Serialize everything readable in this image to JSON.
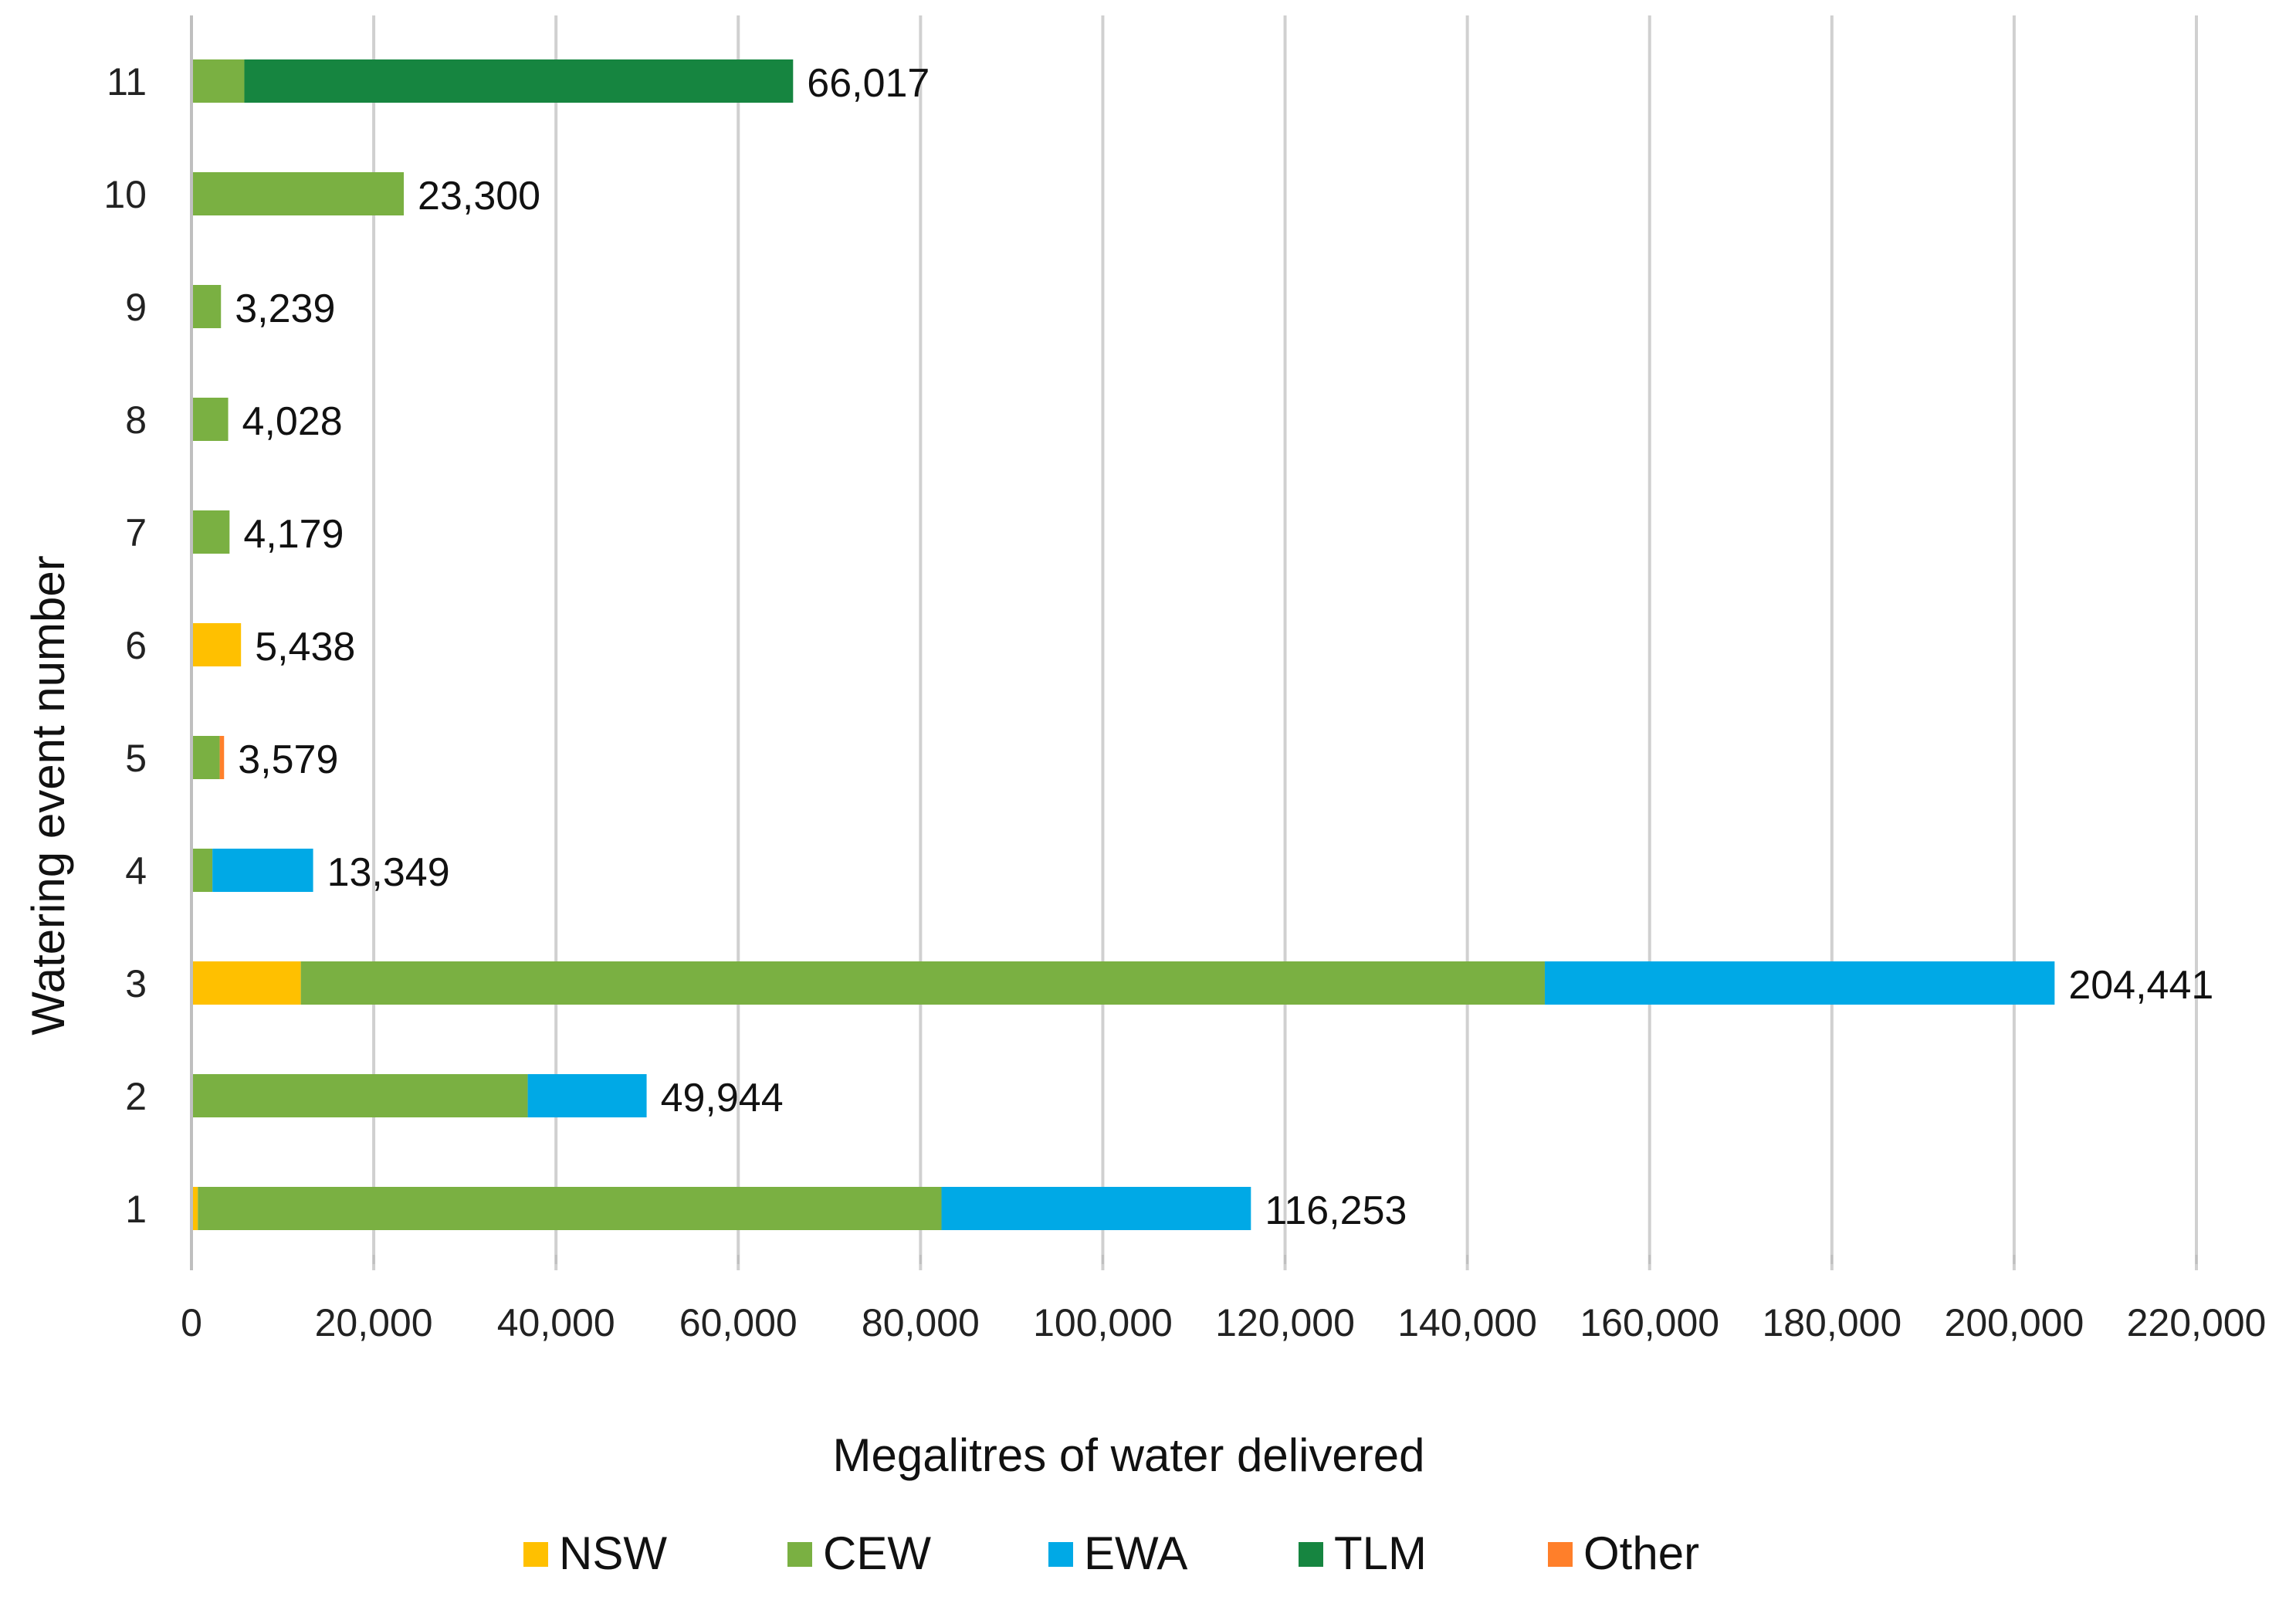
{
  "chart_data": {
    "type": "bar",
    "orientation": "horizontal",
    "stacked": true,
    "title": "",
    "xlabel": "Megalitres of water delivered",
    "ylabel": "Watering event number",
    "xlim": [
      0,
      220000
    ],
    "x_ticks": [
      0,
      20000,
      40000,
      60000,
      80000,
      100000,
      120000,
      140000,
      160000,
      180000,
      200000,
      220000
    ],
    "x_tick_labels": [
      "0",
      "20,000",
      "40,000",
      "60,000",
      "80,000",
      "100,000",
      "120,000",
      "140,000",
      "160,000",
      "180,000",
      "200,000",
      "220,000"
    ],
    "grid": "vertical",
    "legend_position": "bottom",
    "categories": [
      "1",
      "2",
      "3",
      "4",
      "5",
      "6",
      "7",
      "8",
      "9",
      "10",
      "11"
    ],
    "series": [
      {
        "name": "NSW",
        "color": "#FFC000",
        "values": [
          700,
          0,
          12000,
          0,
          0,
          5438,
          0,
          0,
          0,
          0,
          0
        ]
      },
      {
        "name": "CEW",
        "color": "#7AB042",
        "values": [
          81600,
          36900,
          136500,
          2300,
          3100,
          0,
          4179,
          4028,
          3239,
          23300,
          5800
        ]
      },
      {
        "name": "EWA",
        "color": "#00A9E6",
        "values": [
          33953,
          13044,
          55941,
          11049,
          0,
          0,
          0,
          0,
          0,
          0,
          0
        ]
      },
      {
        "name": "TLM",
        "color": "#168540",
        "values": [
          0,
          0,
          0,
          0,
          0,
          0,
          0,
          0,
          0,
          0,
          60217
        ]
      },
      {
        "name": "Other",
        "color": "#FF7F2A",
        "values": [
          0,
          0,
          0,
          0,
          479,
          0,
          0,
          0,
          0,
          0,
          0
        ]
      }
    ],
    "totals": [
      116253,
      49944,
      204441,
      13349,
      3579,
      5438,
      4179,
      4028,
      3239,
      23300,
      66017
    ],
    "total_labels": [
      "116,253",
      "49,944",
      "204,441",
      "13,349",
      "3,579",
      "5,438",
      "4,179",
      "4,028",
      "3,239",
      "23,300",
      "66,017"
    ]
  }
}
